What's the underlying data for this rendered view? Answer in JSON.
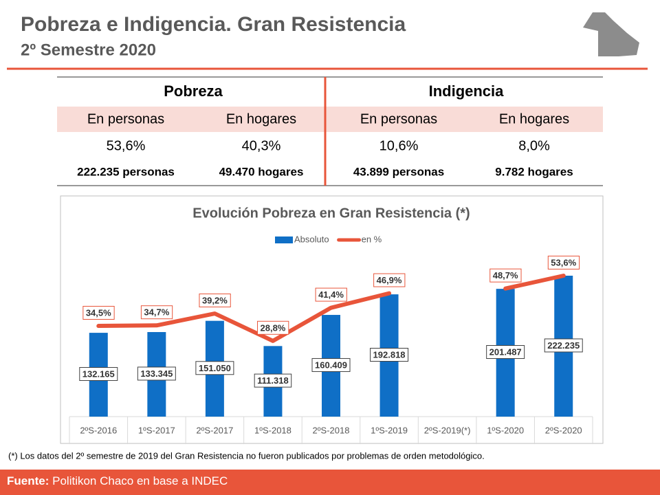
{
  "header": {
    "title": "Pobreza e Indigencia. Gran Resistencia",
    "subtitle": "2º Semestre 2020"
  },
  "table": {
    "groups": [
      "Pobreza",
      "Indigencia"
    ],
    "columns": [
      "En personas",
      "En hogares",
      "En personas",
      "En hogares"
    ],
    "rows": [
      [
        "53,6%",
        "40,3%",
        "10,6%",
        "8,0%"
      ],
      [
        "222.235 personas",
        "49.470 hogares",
        "43.899 personas",
        "9.782 hogares"
      ]
    ]
  },
  "chart_data": {
    "type": "bar",
    "title": "Evolución Pobreza en Gran Resistencia (*)",
    "categories": [
      "2ºS-2016",
      "1ºS-2017",
      "2ºS-2017",
      "1ºS-2018",
      "2ºS-2018",
      "1ºS-2019",
      "2ºS-2019(*)",
      "1ºS-2020",
      "2ºS-2020"
    ],
    "series": [
      {
        "name": "Absoluto",
        "color": "#0f6fc6",
        "type": "bar",
        "values": [
          132165,
          133345,
          151050,
          111318,
          160409,
          192818,
          null,
          201487,
          222235
        ],
        "value_labels": [
          "132.165",
          "133.345",
          "151.050",
          "111.318",
          "160.409",
          "192.818",
          null,
          "201.487",
          "222.235"
        ]
      },
      {
        "name": "en %",
        "color": "#e8553a",
        "type": "line",
        "axis": "y2",
        "values": [
          34.5,
          34.7,
          39.2,
          28.8,
          41.4,
          46.9,
          null,
          48.7,
          53.6
        ],
        "value_labels": [
          "34,5%",
          "34,7%",
          "39,2%",
          "28,8%",
          "41,4%",
          "46,9%",
          null,
          "48,7%",
          "53,6%"
        ]
      }
    ],
    "legend": "top"
  },
  "footnote": "(*) Los datos del 2º semestre de 2019 del Gran Resistencia no fueron publicados por problemas de orden metodológico.",
  "footer": {
    "label": "Fuente:",
    "text": "Politikon Chaco en base a INDEC"
  }
}
